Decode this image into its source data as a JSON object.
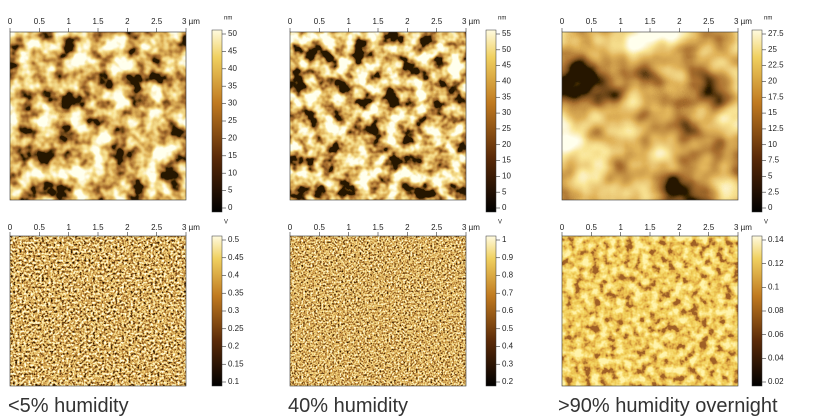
{
  "panels": [
    {
      "x_ticks": [
        "0",
        "0.5",
        "1",
        "1.5",
        "2",
        "2.5",
        "3 µm"
      ],
      "unit": "nm",
      "scale_ticks": [
        "50",
        "45",
        "40",
        "35",
        "30",
        "25",
        "20",
        "15",
        "10",
        "5",
        "0"
      ]
    },
    {
      "x_ticks": [
        "0",
        "0.5",
        "1",
        "1.5",
        "2",
        "2.5",
        "3 µm"
      ],
      "unit": "nm",
      "scale_ticks": [
        "55",
        "50",
        "45",
        "40",
        "35",
        "30",
        "25",
        "20",
        "15",
        "10",
        "5",
        "0"
      ]
    },
    {
      "x_ticks": [
        "0",
        "0.5",
        "1",
        "1.5",
        "2",
        "2.5",
        "3 µm"
      ],
      "unit": "nm",
      "scale_ticks": [
        "27.5",
        "25",
        "22.5",
        "20",
        "17.5",
        "15",
        "12.5",
        "10",
        "7.5",
        "5",
        "2.5",
        "0"
      ]
    },
    {
      "x_ticks": [
        "0",
        "0.5",
        "1",
        "1.5",
        "2",
        "2.5",
        "3 µm"
      ],
      "unit": "V",
      "scale_ticks": [
        "0.5",
        "0.45",
        "0.4",
        "0.35",
        "0.3",
        "0.25",
        "0.2",
        "0.15",
        "0.1"
      ]
    },
    {
      "x_ticks": [
        "0",
        "0.5",
        "1",
        "1.5",
        "2",
        "2.5",
        "3 µm"
      ],
      "unit": "V",
      "scale_ticks": [
        "1",
        "0.9",
        "0.8",
        "0.7",
        "0.6",
        "0.5",
        "0.4",
        "0.3",
        "0.2"
      ]
    },
    {
      "x_ticks": [
        "0",
        "0.5",
        "1",
        "1.5",
        "2",
        "2.5",
        "3 µm"
      ],
      "unit": "V",
      "scale_ticks": [
        "0.14",
        "0.12",
        "0.1",
        "0.08",
        "0.06",
        "0.04",
        "0.02"
      ]
    }
  ],
  "captions": [
    "<5% humidity",
    "40% humidity",
    ">90% humidity overnight"
  ]
}
